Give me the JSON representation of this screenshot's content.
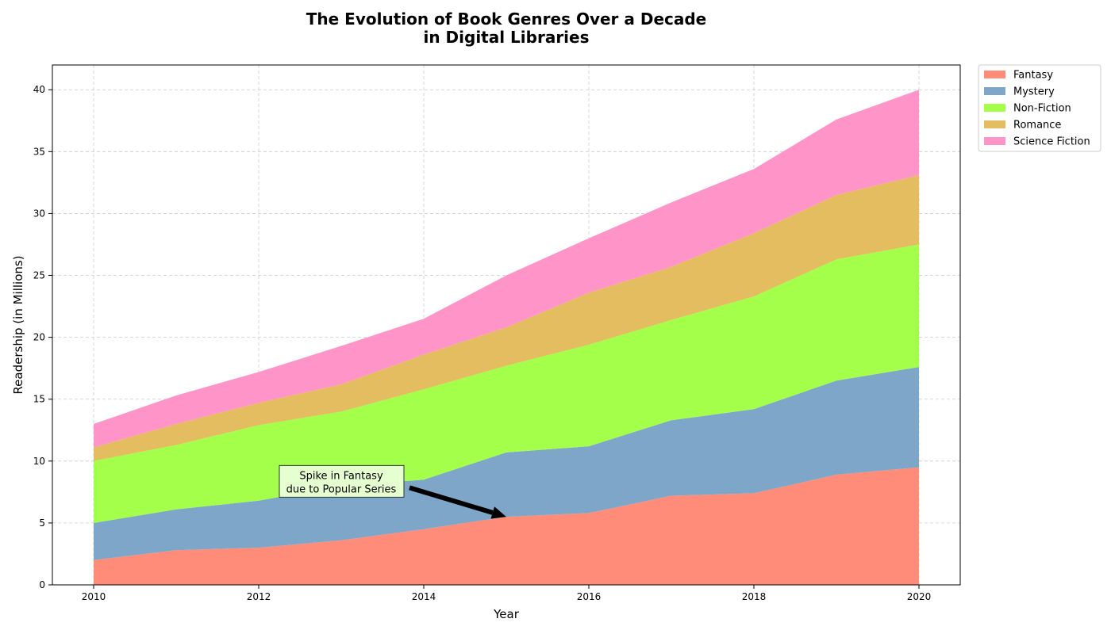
{
  "chart_data": {
    "type": "area",
    "stacked": true,
    "title_lines": [
      "The Evolution of Book Genres Over a Decade",
      "in Digital Libraries"
    ],
    "xlabel": "Year",
    "ylabel": "Readership (in Millions)",
    "x": [
      2010,
      2011,
      2012,
      2013,
      2014,
      2015,
      2016,
      2017,
      2018,
      2019,
      2020
    ],
    "xlim": [
      2009.5,
      2020.5
    ],
    "ylim": [
      0,
      42
    ],
    "xticks": [
      "2010",
      "2012",
      "2014",
      "2016",
      "2018",
      "2020"
    ],
    "yticks": [
      "0",
      "5",
      "10",
      "15",
      "20",
      "25",
      "30",
      "35",
      "40"
    ],
    "grid": true,
    "legend_position": "outside-top-right",
    "series": [
      {
        "name": "Fantasy",
        "color": "#ff8c78",
        "values": [
          2.0,
          2.8,
          3.0,
          3.6,
          4.5,
          5.5,
          5.8,
          7.2,
          7.4,
          8.9,
          9.5
        ]
      },
      {
        "name": "Mystery",
        "color": "#7ea6c9",
        "values": [
          3.0,
          3.3,
          3.8,
          4.4,
          4.0,
          5.2,
          5.4,
          6.1,
          6.8,
          7.6,
          8.1
        ]
      },
      {
        "name": "Non-Fiction",
        "color": "#a3ff4a",
        "values": [
          5.0,
          5.2,
          6.1,
          6.0,
          7.3,
          7.0,
          8.2,
          8.1,
          9.1,
          9.8,
          9.9
        ]
      },
      {
        "name": "Romance",
        "color": "#e4bd60",
        "values": [
          1.1,
          1.7,
          1.8,
          2.2,
          2.8,
          3.1,
          4.2,
          4.3,
          5.1,
          5.2,
          5.6
        ]
      },
      {
        "name": "Science Fiction",
        "color": "#ff94c8",
        "values": [
          1.9,
          2.3,
          2.5,
          3.1,
          2.9,
          4.2,
          4.4,
          5.2,
          5.2,
          6.1,
          6.9
        ]
      }
    ],
    "annotation": {
      "text_lines": [
        "Spike in Fantasy",
        "due to Popular Series"
      ],
      "point": {
        "x": 2015,
        "y": 5.5
      },
      "text_at": {
        "x": 2013,
        "y": 8.3
      },
      "box_color": "#e5ffd0"
    }
  }
}
